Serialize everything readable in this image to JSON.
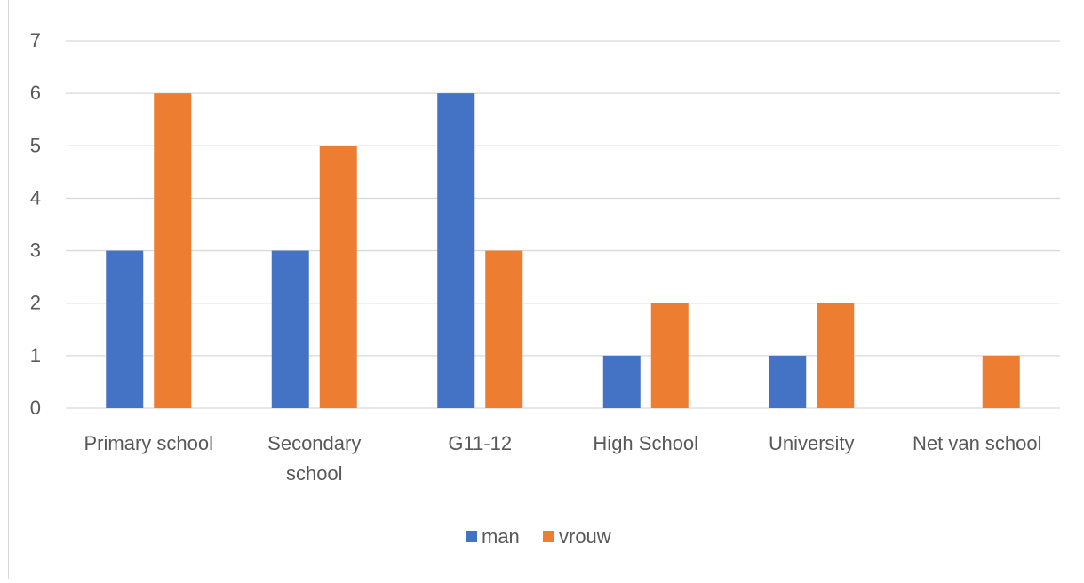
{
  "chart_data": {
    "type": "bar",
    "categories": [
      [
        "Primary school"
      ],
      [
        "Secondary",
        "school"
      ],
      [
        "G11-12"
      ],
      [
        "High School"
      ],
      [
        "University"
      ],
      [
        "Net van school"
      ]
    ],
    "series": [
      {
        "name": "man",
        "color": "#4472C4",
        "values": [
          3,
          3,
          6,
          1,
          1,
          0
        ]
      },
      {
        "name": "vrouw",
        "color": "#ED7D31",
        "values": [
          6,
          5,
          3,
          2,
          2,
          1
        ]
      }
    ],
    "ylim": [
      0,
      7
    ],
    "yticks": [
      "0",
      "1",
      "2",
      "3",
      "4",
      "5",
      "6",
      "7"
    ],
    "grid": true,
    "legend_position": "bottom"
  }
}
